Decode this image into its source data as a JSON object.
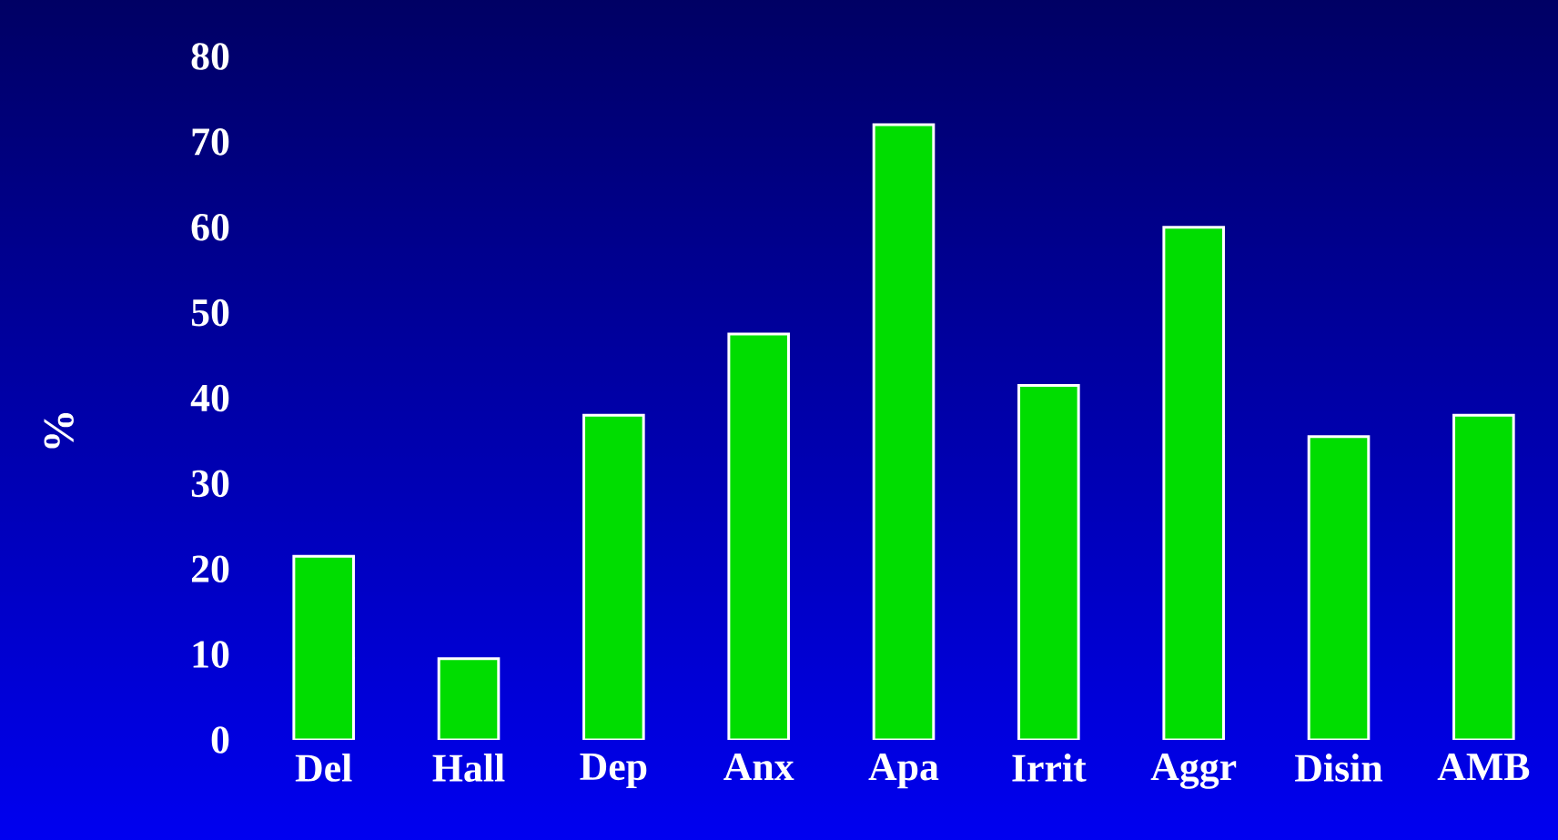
{
  "chart_data": {
    "type": "bar",
    "ylabel": "%",
    "categories": [
      "Del",
      "Hall",
      "Dep",
      "Anx",
      "Apa",
      "Irrit",
      "Aggr",
      "Disin",
      "AMB"
    ],
    "values": [
      21.5,
      9.5,
      38,
      47.5,
      72,
      41.5,
      60,
      35.5,
      38
    ],
    "color": "#00dd00",
    "ylim": [
      0,
      80
    ],
    "yticks": [
      0,
      10,
      20,
      30,
      40,
      50,
      60,
      70,
      80
    ]
  }
}
